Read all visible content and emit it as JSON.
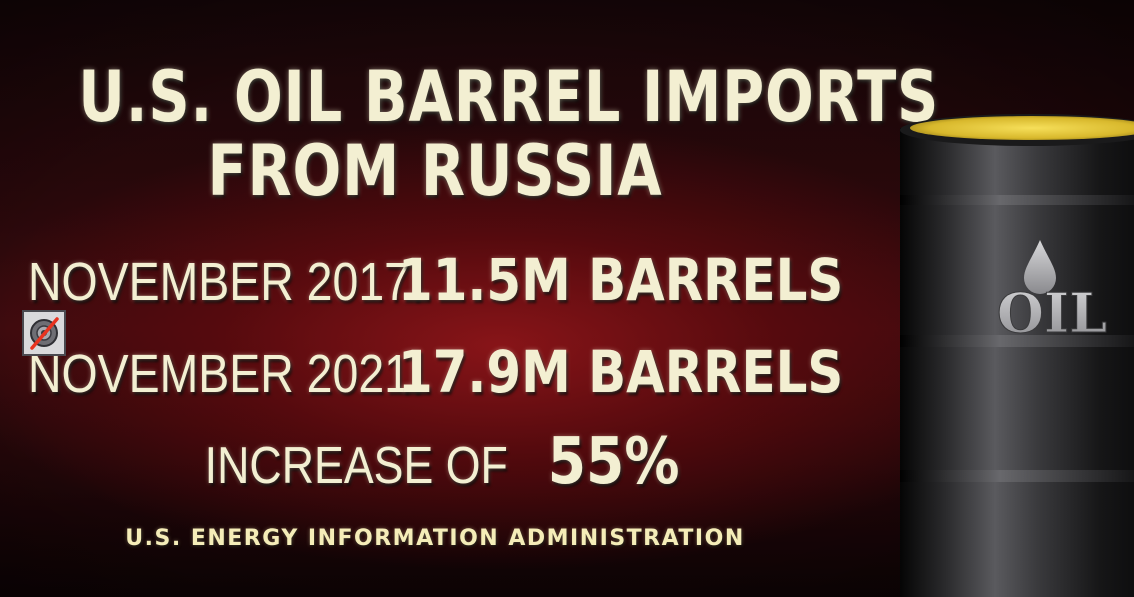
{
  "title": {
    "line1": "U.S. OIL BARREL IMPORTS",
    "line2": "FROM RUSSIA"
  },
  "rows": [
    {
      "label": "NOVEMBER 2017:",
      "value": "11.5M BARRELS"
    },
    {
      "label": "NOVEMBER 2021:",
      "value": "17.9M BARRELS"
    }
  ],
  "increase": {
    "label": "INCREASE OF",
    "value": "55%"
  },
  "source": "U.S. ENERGY INFORMATION ADMINISTRATION",
  "barrel": {
    "label": "OIL"
  },
  "icons": {
    "mute": "speaker-muted-icon",
    "barrel": "oil-barrel-icon",
    "drop": "oil-drop-icon"
  },
  "colors": {
    "text": "#f3efd2",
    "source_text": "#f5edb8",
    "background_red": "#96161a",
    "barrel_oil": "#e0c43a"
  }
}
